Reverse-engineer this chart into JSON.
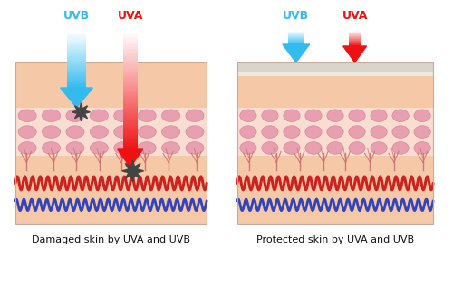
{
  "bg": "#ffffff",
  "left_label": "Damaged skin by UVA and UVB",
  "right_label": "Protected skin by UVA and UVB",
  "uvb_color": "#33bbee",
  "uva_color": "#ee1111",
  "skin_top_color": "#f5c8a8",
  "skin_mid_bg": "#f8ddd0",
  "skin_cell_bg": "#f5cfc0",
  "cell_color": "#e8a0b0",
  "cell_border": "#d88898",
  "skin_deep_color": "#f5c8a8",
  "sunscreen_color": "#d8d5cc",
  "sunscreen_thin_color": "#ede9e0",
  "vein_red": "#cc2222",
  "vein_blue": "#3344bb",
  "hair_color": "#cc7070",
  "damage_color": "#444444"
}
